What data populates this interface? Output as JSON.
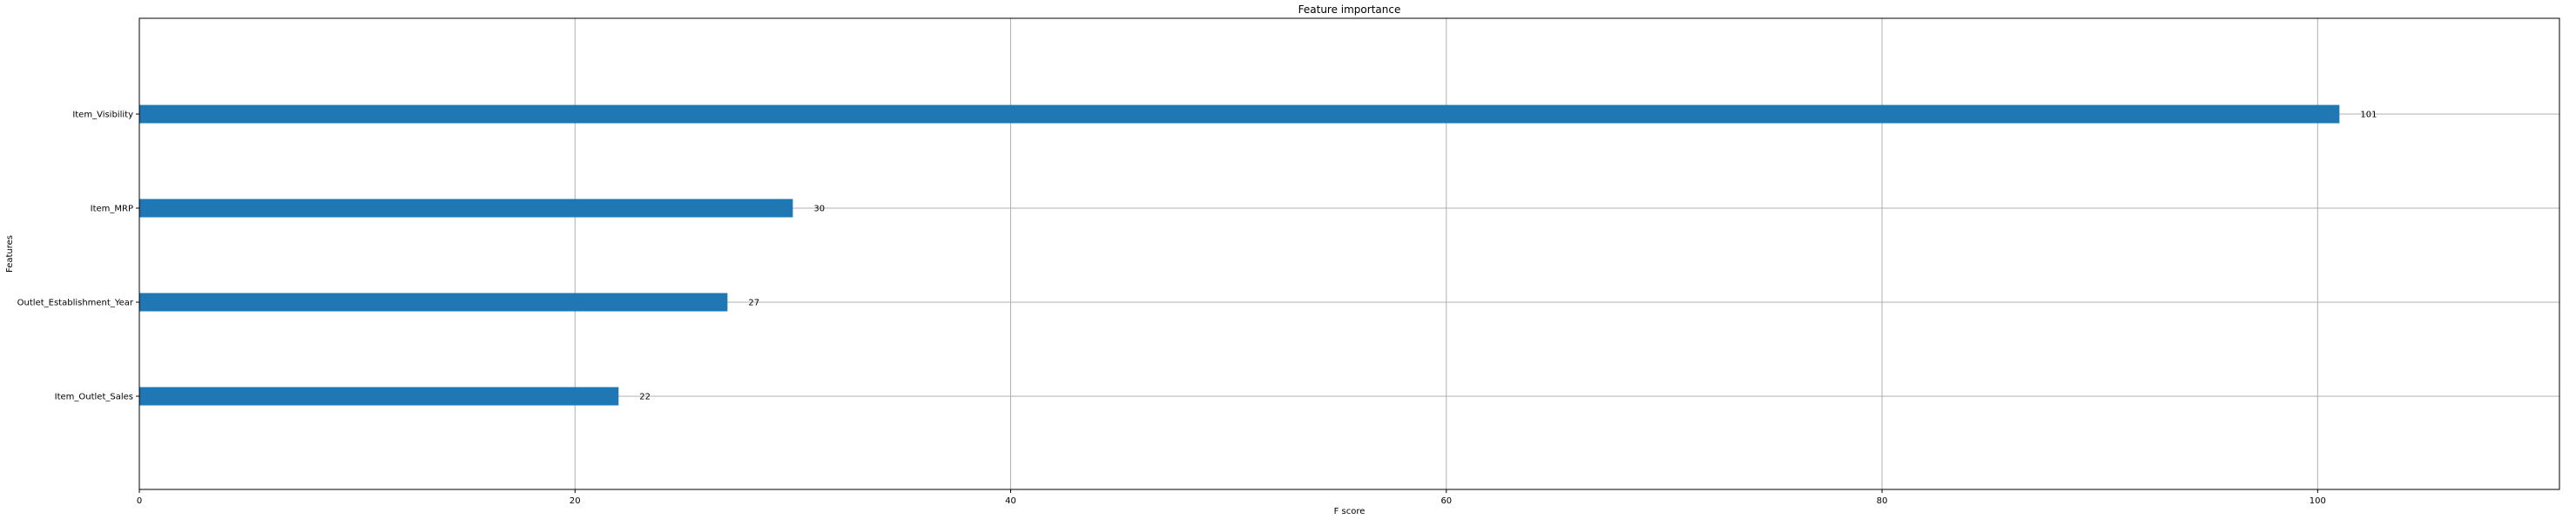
{
  "chart_data": {
    "type": "bar",
    "orientation": "horizontal",
    "title": "Feature importance",
    "xlabel": "F score",
    "ylabel": "Features",
    "categories": [
      "Item_Outlet_Sales",
      "Outlet_Establishment_Year",
      "Item_MRP",
      "Item_Visibility"
    ],
    "values": [
      22,
      27,
      30,
      101
    ],
    "data_labels": [
      "22",
      "27",
      "30",
      "101"
    ],
    "xlim": [
      0,
      111.1
    ],
    "xticks": [
      0,
      20,
      40,
      60,
      80,
      100
    ],
    "xtick_labels": [
      "0",
      "20",
      "40",
      "60",
      "80",
      "100"
    ],
    "grid": true,
    "bar_color": "#1f77b4",
    "grid_color": "#b0b0b0"
  }
}
